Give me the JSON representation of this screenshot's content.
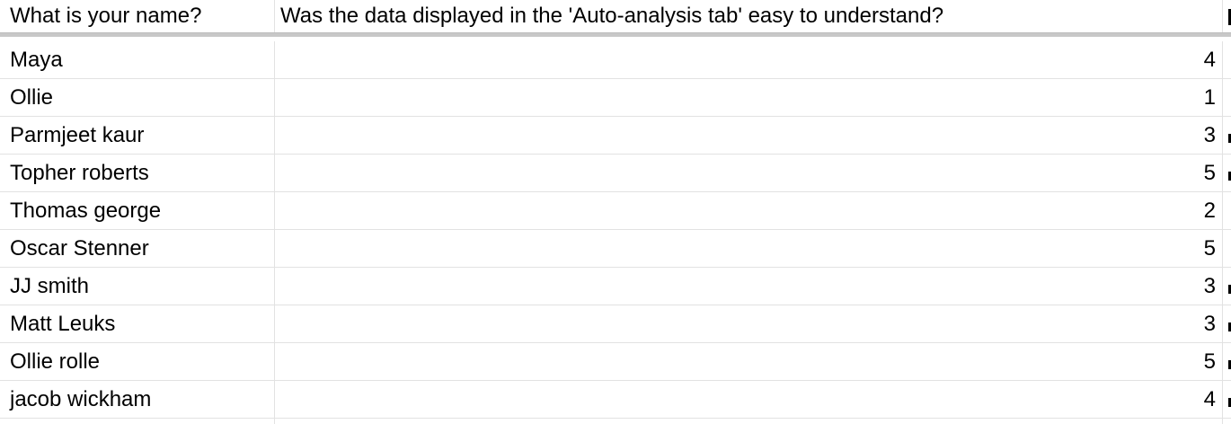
{
  "sheet": {
    "headers": {
      "col_a": "What is your name?",
      "col_b": "Was the data displayed in the 'Auto-analysis tab' easy to understand?"
    },
    "rows": [
      {
        "name": "Maya",
        "rating": "4"
      },
      {
        "name": "Ollie",
        "rating": "1"
      },
      {
        "name": "Parmjeet kaur",
        "rating": "3"
      },
      {
        "name": "Topher roberts",
        "rating": "5"
      },
      {
        "name": "Thomas george",
        "rating": "2"
      },
      {
        "name": "Oscar Stenner",
        "rating": "5"
      },
      {
        "name": "JJ smith",
        "rating": "3"
      },
      {
        "name": "Matt Leuks",
        "rating": "3"
      },
      {
        "name": "Ollie rolle",
        "rating": "5"
      },
      {
        "name": "jacob wickham",
        "rating": "4"
      }
    ]
  }
}
